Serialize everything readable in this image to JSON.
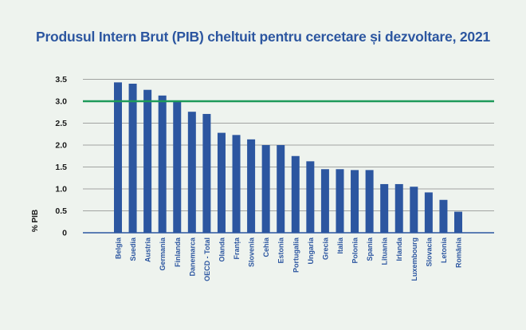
{
  "chart_data": {
    "type": "bar",
    "title": "Produsul Intern Brut (PIB) cheltuit pentru cercetare și dezvoltare, 2021",
    "ylabel": "% PIB",
    "xlabel": "",
    "ylim": [
      0,
      3.5
    ],
    "yticks": [
      0,
      0.5,
      1.0,
      1.5,
      2.0,
      2.5,
      3.0,
      3.5
    ],
    "ytick_labels": [
      "0",
      "0.5",
      "1.0",
      "1.5",
      "2.0",
      "2.5",
      "3.0",
      "3.5"
    ],
    "grid": true,
    "reference_line": {
      "value": 3.0,
      "color": "#1e9a5a"
    },
    "bar_color": "#2c56a0",
    "categories": [
      "Belgia",
      "Suedia",
      "Austria",
      "Germania",
      "Finlanda",
      "Danemarca",
      "OECD - Total",
      "Olanda",
      "Franța",
      "Slovenia",
      "Cehia",
      "Estonia",
      "Portugalia",
      "Ungaria",
      "Grecia",
      "Italia",
      "Polonia",
      "Spania",
      "Lituania",
      "Irlanda",
      "Luxembourg",
      "Slovacia",
      "Letonia",
      "România"
    ],
    "values": [
      3.43,
      3.4,
      3.26,
      3.13,
      3.0,
      2.76,
      2.71,
      2.28,
      2.23,
      2.13,
      2.0,
      2.0,
      1.75,
      1.63,
      1.45,
      1.45,
      1.43,
      1.43,
      1.11,
      1.11,
      1.05,
      0.92,
      0.75,
      0.48
    ]
  }
}
